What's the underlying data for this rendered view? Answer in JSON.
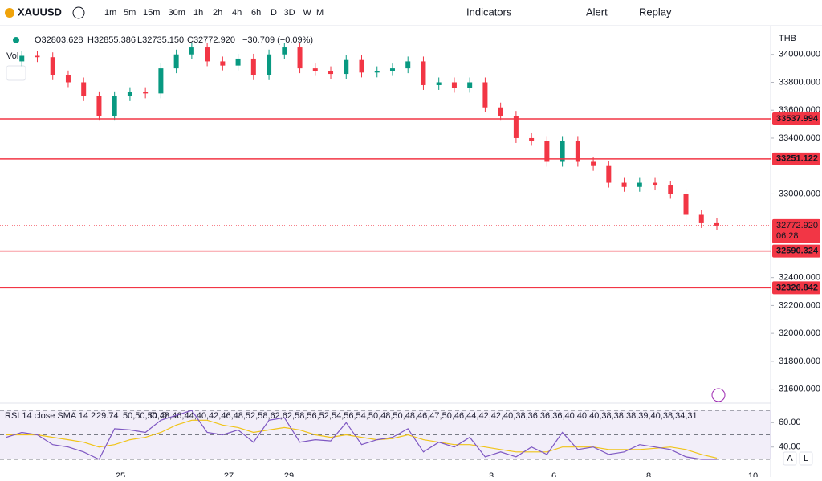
{
  "toolbar": {
    "symbol": "XAUUSD",
    "intervals": [
      "1m",
      "5m",
      "15m",
      "30m",
      "1h",
      "2h",
      "4h",
      "6h",
      "D",
      "3D",
      "W",
      "M"
    ],
    "active_interval": "1h",
    "indicators": "Indicators",
    "alert": "Alert",
    "replay": "Replay"
  },
  "legend": {
    "open": "O32803.628",
    "high": "H32855.386",
    "low": "L32735.150",
    "close": "C32772.920",
    "change": "−30.709 (−0.09%)",
    "volume": "Vol"
  },
  "price_axis": {
    "currency": "THB",
    "ylim": [
      31500,
      34200
    ],
    "ticks": [
      {
        "value": 34000,
        "label": "34000.000"
      },
      {
        "value": 33800,
        "label": "33800.000"
      },
      {
        "value": 33600,
        "label": "33600.000"
      },
      {
        "value": 33400,
        "label": "33400.000"
      },
      {
        "value": 33000,
        "label": "33000.000"
      },
      {
        "value": 32400,
        "label": "32400.000"
      },
      {
        "value": 32200,
        "label": "32200.000"
      },
      {
        "value": 32000,
        "label": "32000.000"
      },
      {
        "value": 31800,
        "label": "31800.000"
      },
      {
        "value": 31600,
        "label": "31600.000"
      }
    ]
  },
  "levels": [
    {
      "value": 33537.994,
      "label": "33537.994"
    },
    {
      "value": 33251.122,
      "label": "33251.122"
    },
    {
      "value": 32590.324,
      "label": "32590.324"
    },
    {
      "value": 32326.842,
      "label": "32326.842"
    }
  ],
  "last_price": {
    "value": 32772.92,
    "label": "32772.920",
    "countdown": "06:28"
  },
  "candles": {
    "close": [
      33950,
      33990,
      33980,
      33850,
      33800,
      33700,
      33560,
      33700,
      33730,
      33720,
      33900,
      34000,
      34050,
      33950,
      33920,
      33970,
      33850,
      34000,
      34050,
      33900,
      33880,
      33860,
      33960,
      33870,
      33880,
      33900,
      33950,
      33780,
      33800,
      33760,
      33800,
      33620,
      33560,
      33400,
      33380,
      33230,
      33380,
      33230,
      33200,
      33080,
      33050,
      33080,
      33060,
      33000,
      32850,
      32790,
      32773
    ]
  },
  "rsi": {
    "title": "RSI 14 close SMA 14 2",
    "value": "29.74",
    "sma": [
      50,
      50,
      50,
      48,
      46,
      44,
      40,
      42,
      46,
      48,
      52,
      58,
      62,
      62,
      58,
      56,
      52,
      54,
      56,
      54,
      50,
      48,
      50,
      48,
      46,
      47,
      50,
      46,
      44,
      42,
      42,
      40,
      38,
      36,
      36,
      36,
      40,
      40,
      40,
      38,
      38,
      38,
      39,
      40,
      38,
      34,
      31
    ],
    "na1": "∅",
    "na2": "∅",
    "ylim": [
      28,
      74
    ],
    "ticks": [
      {
        "value": 60,
        "label": "60.00"
      },
      {
        "value": 40,
        "label": "40.00"
      }
    ],
    "bands": [
      70,
      50,
      30
    ],
    "values": [
      48,
      52,
      50,
      42,
      40,
      36,
      30,
      55,
      54,
      52,
      62,
      66,
      70,
      52,
      50,
      54,
      44,
      62,
      64,
      44,
      46,
      45,
      60,
      42,
      46,
      48,
      55,
      36,
      44,
      40,
      48,
      32,
      36,
      32,
      40,
      34,
      52,
      38,
      40,
      34,
      36,
      42,
      40,
      38,
      32,
      30,
      30
    ]
  },
  "x_axis": {
    "labels": [
      "25",
      "27",
      "29",
      "3",
      "6",
      "8",
      "10"
    ]
  },
  "scale_buttons": [
    "A",
    "L"
  ]
}
